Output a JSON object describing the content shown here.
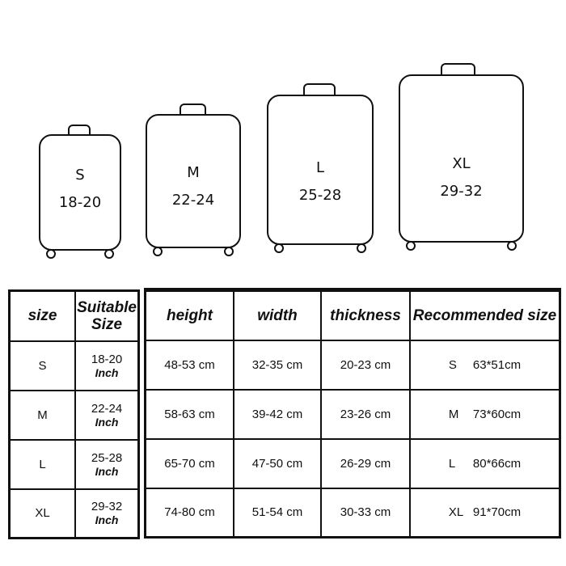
{
  "suitcases": [
    {
      "size": "S",
      "range": "18-20"
    },
    {
      "size": "M",
      "range": "22-24"
    },
    {
      "size": "L",
      "range": "25-28"
    },
    {
      "size": "XL",
      "range": "29-32"
    }
  ],
  "left_table": {
    "headers": [
      "size",
      "Suitable Size"
    ],
    "unit": "Inch",
    "rows": [
      {
        "size": "S",
        "suitable": "18-20"
      },
      {
        "size": "M",
        "suitable": "22-24"
      },
      {
        "size": "L",
        "suitable": "25-28"
      },
      {
        "size": "XL",
        "suitable": "29-32"
      }
    ]
  },
  "right_table": {
    "headers": [
      "height",
      "width",
      "thickness",
      "Recommended size"
    ],
    "rows": [
      {
        "height": "48-53 cm",
        "width": "32-35 cm",
        "thickness": "20-23 cm",
        "rec_size": "S",
        "rec_dim": "63*51cm"
      },
      {
        "height": "58-63 cm",
        "width": "39-42 cm",
        "thickness": "23-26 cm",
        "rec_size": "M",
        "rec_dim": "73*60cm"
      },
      {
        "height": "65-70 cm",
        "width": "47-50 cm",
        "thickness": "26-29 cm",
        "rec_size": "L",
        "rec_dim": "80*66cm"
      },
      {
        "height": "74-80 cm",
        "width": "51-54 cm",
        "thickness": "30-33 cm",
        "rec_size": "XL",
        "rec_dim": "91*70cm"
      }
    ]
  }
}
